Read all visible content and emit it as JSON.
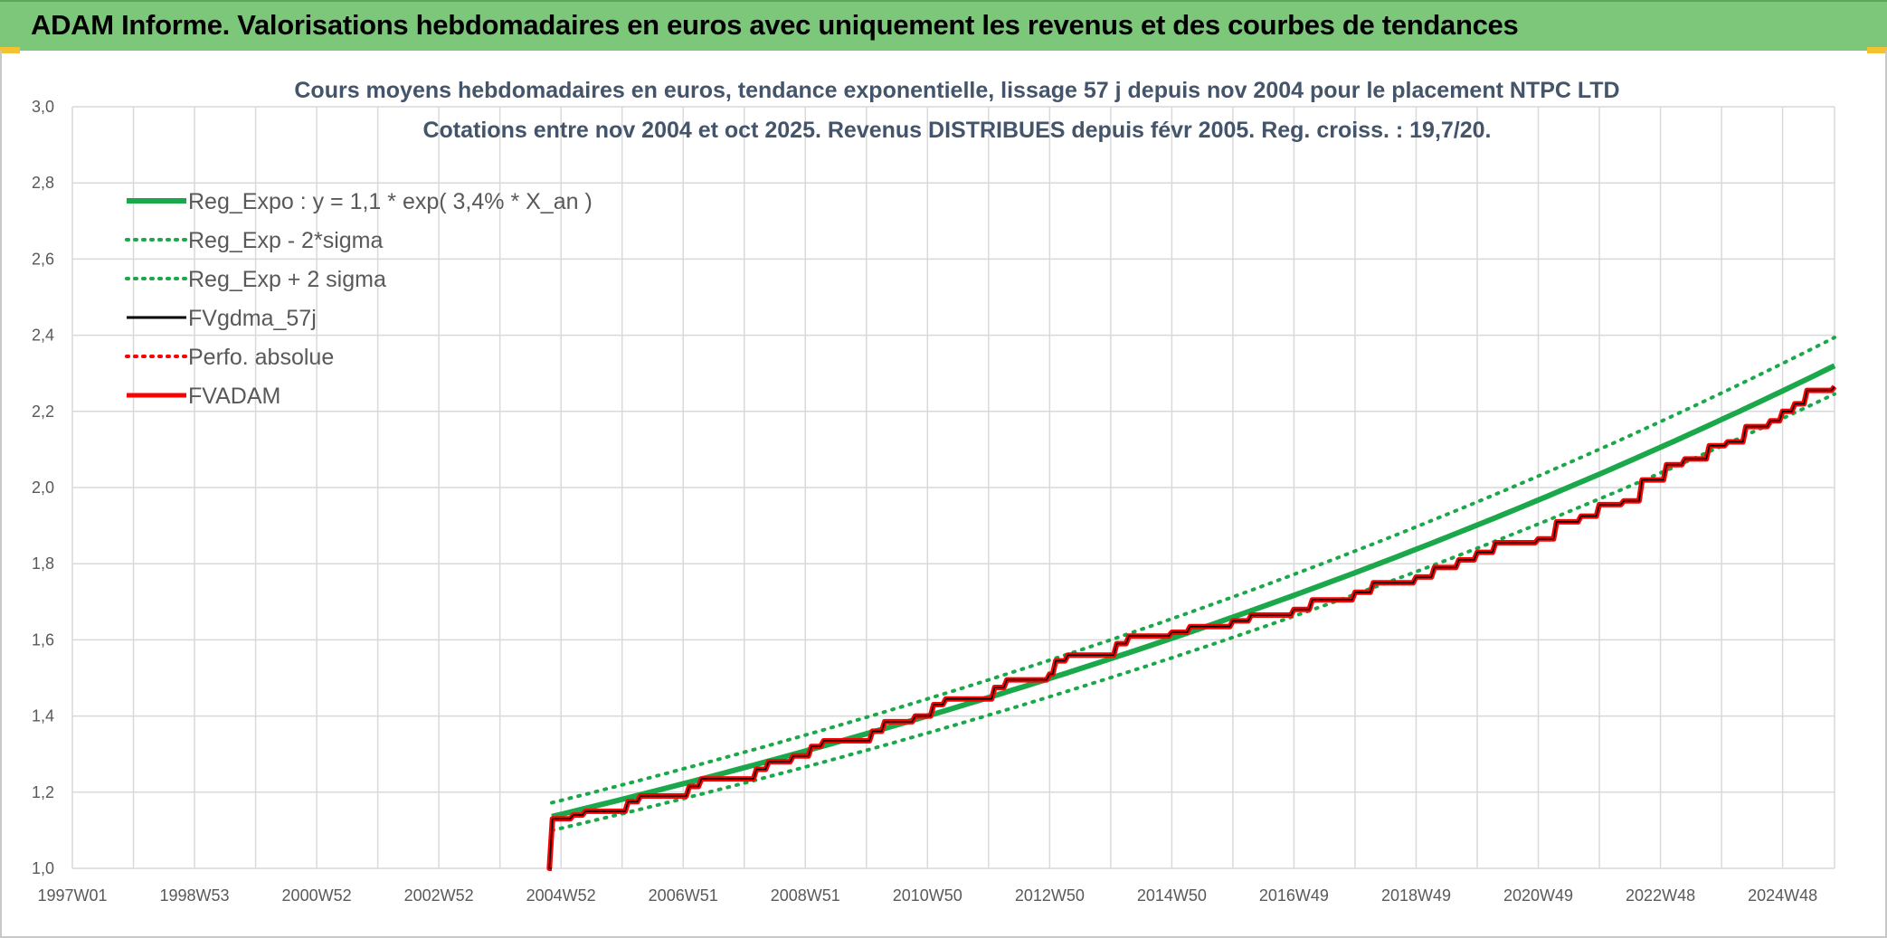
{
  "banner": {
    "title": "ADAM Informe. Valorisations hebdomadaires en euros avec uniquement les revenus et des courbes de tendances"
  },
  "chart_data": {
    "type": "line",
    "title": "Cours moyens hebdomadaires en euros, tendance exponentielle, lissage 57 j depuis nov 2004 pour le placement NTPC LTD",
    "subtitle": "Cotations entre nov 2004 et oct 2025. Revenus DISTRIBUES depuis févr 2005. Reg. croiss. : 19,7/20.",
    "xlabel": "",
    "ylabel": "",
    "x_tick_labels": [
      "1997W01",
      "1998W53",
      "2000W52",
      "2002W52",
      "2004W52",
      "2006W51",
      "2008W51",
      "2010W50",
      "2012W50",
      "2014W50",
      "2016W49",
      "2018W49",
      "2020W49",
      "2022W48",
      "2024W48"
    ],
    "y_tick_labels": [
      "1,0",
      "1,2",
      "1,4",
      "1,6",
      "1,8",
      "2,0",
      "2,2",
      "2,4",
      "2,6",
      "2,8",
      "3,0"
    ],
    "ylim": [
      1.0,
      3.0
    ],
    "xlim": [
      1997.0,
      2025.85
    ],
    "grid": true,
    "legend_position": "top-left",
    "colors": {
      "green": "#1aa84a",
      "black": "#000000",
      "red": "#ff0000",
      "grid": "#d9d9d9"
    },
    "regression": {
      "start_year": 2004.85,
      "a": 1.136,
      "rate": 0.034,
      "sigma_band": 0.032
    },
    "series": [
      {
        "name": "Reg_Expo : y = 1,1 * exp( 3,4% *  X_an )",
        "style": "solid",
        "color": "#1aa84a",
        "width": 6,
        "x": [
          2004.85,
          2025.85
        ],
        "y": [
          1.136,
          2.33
        ]
      },
      {
        "name": "Reg_Exp - 2*sigma",
        "style": "dotted",
        "color": "#1aa84a",
        "width": 4,
        "x": [
          2004.85,
          2025.85
        ],
        "y": [
          1.1,
          2.255
        ]
      },
      {
        "name": "Reg_Exp + 2 sigma",
        "style": "dotted",
        "color": "#1aa84a",
        "width": 4,
        "x": [
          2004.85,
          2025.85
        ],
        "y": [
          1.172,
          2.405
        ]
      },
      {
        "name": "FVgdma_57j",
        "style": "solid",
        "color": "#000000",
        "width": 3
      },
      {
        "name": "Perfo. absolue",
        "style": "dotted",
        "color": "#ff0000",
        "width": 3
      },
      {
        "name": "FVADAM",
        "style": "solid",
        "color": "#ff0000",
        "width": 5
      }
    ],
    "fvadam_steps": [
      {
        "x": 2004.85,
        "y": 1.0
      },
      {
        "x": 2004.86,
        "y": 1.13
      },
      {
        "x": 2005.2,
        "y": 1.14
      },
      {
        "x": 2005.4,
        "y": 1.15
      },
      {
        "x": 2006.1,
        "y": 1.175
      },
      {
        "x": 2006.3,
        "y": 1.19
      },
      {
        "x": 2007.1,
        "y": 1.215
      },
      {
        "x": 2007.3,
        "y": 1.235
      },
      {
        "x": 2008.2,
        "y": 1.26
      },
      {
        "x": 2008.4,
        "y": 1.28
      },
      {
        "x": 2008.8,
        "y": 1.295
      },
      {
        "x": 2009.1,
        "y": 1.32
      },
      {
        "x": 2009.3,
        "y": 1.335
      },
      {
        "x": 2010.1,
        "y": 1.36
      },
      {
        "x": 2010.3,
        "y": 1.385
      },
      {
        "x": 2010.8,
        "y": 1.4
      },
      {
        "x": 2011.1,
        "y": 1.43
      },
      {
        "x": 2011.3,
        "y": 1.445
      },
      {
        "x": 2012.1,
        "y": 1.475
      },
      {
        "x": 2012.3,
        "y": 1.495
      },
      {
        "x": 2013.0,
        "y": 1.51
      },
      {
        "x": 2013.1,
        "y": 1.545
      },
      {
        "x": 2013.3,
        "y": 1.56
      },
      {
        "x": 2014.1,
        "y": 1.59
      },
      {
        "x": 2014.3,
        "y": 1.61
      },
      {
        "x": 2015.0,
        "y": 1.62
      },
      {
        "x": 2015.3,
        "y": 1.635
      },
      {
        "x": 2016.0,
        "y": 1.65
      },
      {
        "x": 2016.3,
        "y": 1.665
      },
      {
        "x": 2017.0,
        "y": 1.68
      },
      {
        "x": 2017.3,
        "y": 1.705
      },
      {
        "x": 2018.0,
        "y": 1.725
      },
      {
        "x": 2018.3,
        "y": 1.75
      },
      {
        "x": 2019.0,
        "y": 1.765
      },
      {
        "x": 2019.3,
        "y": 1.79
      },
      {
        "x": 2019.7,
        "y": 1.81
      },
      {
        "x": 2020.0,
        "y": 1.83
      },
      {
        "x": 2020.3,
        "y": 1.855
      },
      {
        "x": 2021.0,
        "y": 1.865
      },
      {
        "x": 2021.3,
        "y": 1.91
      },
      {
        "x": 2021.7,
        "y": 1.925
      },
      {
        "x": 2022.0,
        "y": 1.955
      },
      {
        "x": 2022.4,
        "y": 1.965
      },
      {
        "x": 2022.7,
        "y": 2.02
      },
      {
        "x": 2023.1,
        "y": 2.06
      },
      {
        "x": 2023.4,
        "y": 2.075
      },
      {
        "x": 2023.8,
        "y": 2.11
      },
      {
        "x": 2024.1,
        "y": 2.12
      },
      {
        "x": 2024.4,
        "y": 2.16
      },
      {
        "x": 2024.8,
        "y": 2.175
      },
      {
        "x": 2025.0,
        "y": 2.2
      },
      {
        "x": 2025.2,
        "y": 2.22
      },
      {
        "x": 2025.4,
        "y": 2.255
      },
      {
        "x": 2025.85,
        "y": 2.265
      }
    ]
  }
}
